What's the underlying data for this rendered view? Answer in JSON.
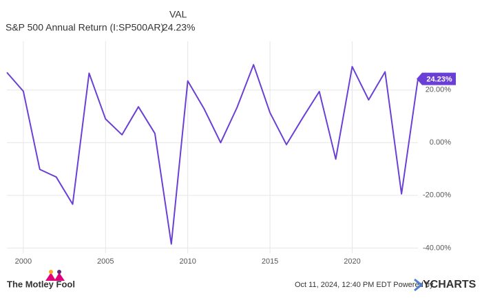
{
  "header": {
    "col_label": "VAL",
    "series_label": "S&P 500 Annual Return (I:SP500AR)",
    "value": "24.23%"
  },
  "chart_data": {
    "type": "line",
    "x": [
      1999,
      2000,
      2001,
      2002,
      2003,
      2004,
      2005,
      2006,
      2007,
      2008,
      2009,
      2010,
      2011,
      2012,
      2013,
      2014,
      2015,
      2016,
      2017,
      2018,
      2019,
      2020,
      2021,
      2022,
      2023,
      2024
    ],
    "series": [
      {
        "name": "S&P 500 Annual Return (I:SP500AR)",
        "color": "#6a3fd6",
        "values": [
          26.67,
          19.53,
          -10.14,
          -13.04,
          -23.37,
          26.38,
          8.99,
          3.0,
          13.62,
          3.53,
          -38.49,
          23.45,
          12.78,
          0.0,
          13.41,
          29.6,
          11.39,
          -0.73,
          9.54,
          19.42,
          -6.24,
          28.88,
          16.26,
          26.89,
          -19.44,
          24.23
        ]
      }
    ],
    "xlim": [
      1999,
      2024
    ],
    "xticks": [
      2000,
      2005,
      2010,
      2015,
      2020
    ],
    "ylim": [
      -42,
      38.5
    ],
    "yticks": [
      {
        "value": 20,
        "label": "20.00%"
      },
      {
        "value": 0,
        "label": "0.00%"
      },
      {
        "value": -20,
        "label": "-20.00%"
      },
      {
        "value": -40,
        "label": "-40.00%"
      }
    ],
    "grid": true
  },
  "footer": {
    "brand": "The Motley Fool",
    "timestamp": "Oct 11, 2024, 12:40 PM EDT Powered by",
    "source": "YCHARTS"
  }
}
